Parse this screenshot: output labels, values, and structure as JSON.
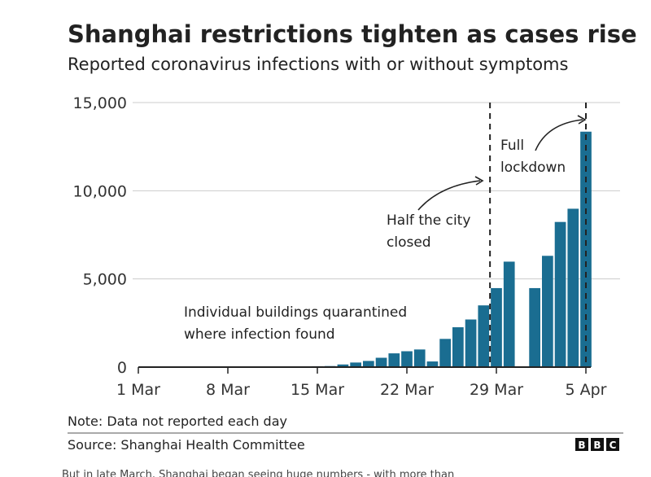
{
  "chart_data": {
    "type": "bar",
    "title": "Shanghai restrictions tighten as cases rise",
    "subtitle": "Reported coronavirus infections with or without symptoms",
    "xlabel": "",
    "ylabel": "",
    "ylim": [
      0,
      15000
    ],
    "yticks": [
      0,
      5000,
      10000,
      15000
    ],
    "ytick_labels": [
      "0",
      "5,000",
      "10,000",
      "15,000"
    ],
    "grid": true,
    "xlim_days": [
      0,
      36
    ],
    "xticks": [
      {
        "label": "1 Mar",
        "day": 0
      },
      {
        "label": "8 Mar",
        "day": 7
      },
      {
        "label": "15 Mar",
        "day": 14
      },
      {
        "label": "22 Mar",
        "day": 21
      },
      {
        "label": "29 Mar",
        "day": 28
      },
      {
        "label": "5 Apr",
        "day": 35
      }
    ],
    "bar_color": "#1a6d91",
    "series": [
      {
        "name": "Reported infections",
        "points": [
          {
            "day": 14,
            "value": 50
          },
          {
            "day": 15,
            "value": 60
          },
          {
            "day": 16,
            "value": 150
          },
          {
            "day": 17,
            "value": 260
          },
          {
            "day": 18,
            "value": 350
          },
          {
            "day": 19,
            "value": 530
          },
          {
            "day": 20,
            "value": 780
          },
          {
            "day": 21,
            "value": 900
          },
          {
            "day": 22,
            "value": 1000
          },
          {
            "day": 23,
            "value": 320
          },
          {
            "day": 24,
            "value": 1600
          },
          {
            "day": 25,
            "value": 2260
          },
          {
            "day": 26,
            "value": 2700
          },
          {
            "day": 27,
            "value": 3500
          },
          {
            "day": 28,
            "value": 4480
          },
          {
            "day": 29,
            "value": 5980
          },
          {
            "day": 31,
            "value": 4480
          },
          {
            "day": 32,
            "value": 6310
          },
          {
            "day": 33,
            "value": 8230
          },
          {
            "day": 34,
            "value": 8980
          },
          {
            "day": 35,
            "value": 13350
          }
        ]
      }
    ],
    "reference_lines": [
      {
        "day": 27.5,
        "label": "Half the city closed"
      },
      {
        "day": 35,
        "label": "Full lockdown"
      }
    ],
    "annotations": [
      {
        "lines": [
          "Individual buildings quarantined",
          "where infection found"
        ]
      },
      {
        "lines": [
          "Half the city",
          "closed"
        ]
      },
      {
        "lines": [
          "Full",
          "lockdown"
        ]
      }
    ]
  },
  "footer": {
    "note": "Note: Data not reported each day",
    "source": "Source: Shanghai Health Committee",
    "logo_letters": [
      "B",
      "B",
      "C"
    ]
  },
  "caption": "But in late March, Shanghai began seeing huge numbers - with more than"
}
